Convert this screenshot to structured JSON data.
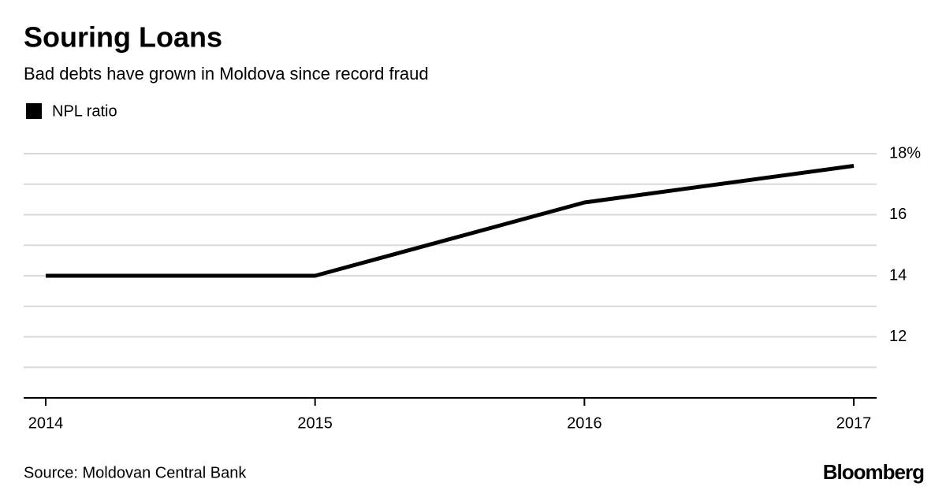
{
  "chart_data": {
    "type": "line",
    "title": "Souring Loans",
    "subtitle": "Bad debts have grown in Moldova since record fraud",
    "categories": [
      "2014",
      "2015",
      "2016",
      "2017"
    ],
    "series": [
      {
        "name": "NPL ratio",
        "color": "#000000",
        "values": [
          14.0,
          14.0,
          16.4,
          17.6
        ]
      }
    ],
    "ylim": [
      10,
      18
    ],
    "yticks": [
      {
        "value": 18,
        "label": "18%"
      },
      16,
      14,
      12
    ],
    "minor_yticks": [
      11,
      13,
      15,
      17
    ],
    "grid": true,
    "source": "Source: Moldovan Central Bank",
    "brand": "Bloomberg"
  }
}
